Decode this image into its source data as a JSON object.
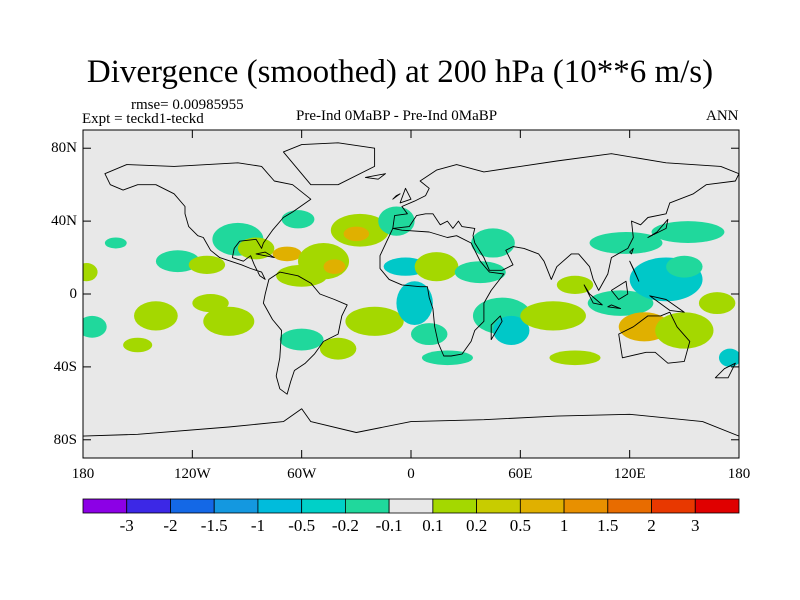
{
  "title": "Divergence (smoothed) at 200 hPa (10**6 m/s)",
  "header": {
    "rmse": "rmse= 0.00985955",
    "expt": "Expt = teckd1-teckd",
    "comparison": "Pre-Ind 0MaBP - Pre-Ind 0MaBP",
    "period": "ANN"
  },
  "map": {
    "lat_range": [
      -90,
      90
    ],
    "lon_range": [
      -180,
      180
    ],
    "lat_ticks": [
      {
        "value": 80,
        "label": "80N"
      },
      {
        "value": 40,
        "label": "40N"
      },
      {
        "value": 0,
        "label": "0"
      },
      {
        "value": -40,
        "label": "40S"
      },
      {
        "value": -80,
        "label": "80S"
      }
    ],
    "lon_ticks": [
      {
        "value": -180,
        "label": "180"
      },
      {
        "value": -120,
        "label": "120W"
      },
      {
        "value": -60,
        "label": "60W"
      },
      {
        "value": 0,
        "label": "0"
      },
      {
        "value": 60,
        "label": "60E"
      },
      {
        "value": 120,
        "label": "120E"
      },
      {
        "value": 180,
        "label": "180"
      }
    ],
    "background_color": "#e8e8e8",
    "coastline_color": "#000000",
    "blobs": [
      {
        "lon": -128,
        "lat": 18,
        "rlon": 12,
        "rlat": 6,
        "color": "#20d89c"
      },
      {
        "lon": -112,
        "lat": 16,
        "rlon": 10,
        "rlat": 5,
        "color": "#a4d800"
      },
      {
        "lon": -95,
        "lat": 30,
        "rlon": 14,
        "rlat": 9,
        "color": "#20d89c"
      },
      {
        "lon": -85,
        "lat": 25,
        "rlon": 10,
        "rlat": 6,
        "color": "#a4d800"
      },
      {
        "lon": -68,
        "lat": 22,
        "rlon": 8,
        "rlat": 4,
        "color": "#e0b000"
      },
      {
        "lon": -60,
        "lat": 10,
        "rlon": 14,
        "rlat": 6,
        "color": "#a4d800"
      },
      {
        "lon": -48,
        "lat": 18,
        "rlon": 14,
        "rlat": 10,
        "color": "#a4d800"
      },
      {
        "lon": -42,
        "lat": 15,
        "rlon": 6,
        "rlat": 4,
        "color": "#e0b000"
      },
      {
        "lon": -62,
        "lat": 41,
        "rlon": 9,
        "rlat": 5,
        "color": "#20d89c"
      },
      {
        "lon": -28,
        "lat": 35,
        "rlon": 16,
        "rlat": 9,
        "color": "#a4d800"
      },
      {
        "lon": -30,
        "lat": 33,
        "rlon": 7,
        "rlat": 4,
        "color": "#e0b000"
      },
      {
        "lon": -8,
        "lat": 40,
        "rlon": 10,
        "rlat": 8,
        "color": "#20d89c"
      },
      {
        "lon": -3,
        "lat": 15,
        "rlon": 12,
        "rlat": 5,
        "color": "#00c8c8"
      },
      {
        "lon": 14,
        "lat": 15,
        "rlon": 12,
        "rlat": 8,
        "color": "#a4d800"
      },
      {
        "lon": 38,
        "lat": 12,
        "rlon": 14,
        "rlat": 6,
        "color": "#20d89c"
      },
      {
        "lon": 45,
        "lat": 28,
        "rlon": 12,
        "rlat": 8,
        "color": "#20d89c"
      },
      {
        "lon": -20,
        "lat": -15,
        "rlon": 16,
        "rlat": 8,
        "color": "#a4d800"
      },
      {
        "lon": 2,
        "lat": -5,
        "rlon": 10,
        "rlat": 12,
        "color": "#00c8c8"
      },
      {
        "lon": 10,
        "lat": -22,
        "rlon": 10,
        "rlat": 6,
        "color": "#20d89c"
      },
      {
        "lon": 50,
        "lat": -12,
        "rlon": 16,
        "rlat": 10,
        "color": "#20d89c"
      },
      {
        "lon": 55,
        "lat": -20,
        "rlon": 10,
        "rlat": 8,
        "color": "#00c8c8"
      },
      {
        "lon": 78,
        "lat": -12,
        "rlon": 18,
        "rlat": 8,
        "color": "#a4d800"
      },
      {
        "lon": 90,
        "lat": 5,
        "rlon": 10,
        "rlat": 5,
        "color": "#a4d800"
      },
      {
        "lon": 115,
        "lat": -5,
        "rlon": 18,
        "rlat": 7,
        "color": "#20d89c"
      },
      {
        "lon": 140,
        "lat": 8,
        "rlon": 20,
        "rlat": 12,
        "color": "#00c8c8"
      },
      {
        "lon": 150,
        "lat": 15,
        "rlon": 10,
        "rlat": 6,
        "color": "#20d89c"
      },
      {
        "lon": 168,
        "lat": -5,
        "rlon": 10,
        "rlat": 6,
        "color": "#a4d800"
      },
      {
        "lon": 128,
        "lat": -18,
        "rlon": 14,
        "rlat": 8,
        "color": "#e0b000"
      },
      {
        "lon": 150,
        "lat": -20,
        "rlon": 16,
        "rlat": 10,
        "color": "#a4d800"
      },
      {
        "lon": 118,
        "lat": 28,
        "rlon": 20,
        "rlat": 6,
        "color": "#20d89c"
      },
      {
        "lon": 152,
        "lat": 34,
        "rlon": 20,
        "rlat": 6,
        "color": "#20d89c"
      },
      {
        "lon": -140,
        "lat": -12,
        "rlon": 12,
        "rlat": 8,
        "color": "#a4d800"
      },
      {
        "lon": -110,
        "lat": -5,
        "rlon": 10,
        "rlat": 5,
        "color": "#a4d800"
      },
      {
        "lon": -100,
        "lat": -15,
        "rlon": 14,
        "rlat": 8,
        "color": "#a4d800"
      },
      {
        "lon": -175,
        "lat": -18,
        "rlon": 8,
        "rlat": 6,
        "color": "#20d89c"
      },
      {
        "lon": -162,
        "lat": 28,
        "rlon": 6,
        "rlat": 3,
        "color": "#20d89c"
      },
      {
        "lon": -178,
        "lat": 12,
        "rlon": 6,
        "rlat": 5,
        "color": "#a4d800"
      },
      {
        "lon": -150,
        "lat": -28,
        "rlon": 8,
        "rlat": 4,
        "color": "#a4d800"
      },
      {
        "lon": -60,
        "lat": -25,
        "rlon": 12,
        "rlat": 6,
        "color": "#20d89c"
      },
      {
        "lon": -40,
        "lat": -30,
        "rlon": 10,
        "rlat": 6,
        "color": "#a4d800"
      },
      {
        "lon": 20,
        "lat": -35,
        "rlon": 14,
        "rlat": 4,
        "color": "#20d89c"
      },
      {
        "lon": 90,
        "lat": -35,
        "rlon": 14,
        "rlat": 4,
        "color": "#a4d800"
      },
      {
        "lon": 175,
        "lat": -35,
        "rlon": 6,
        "rlat": 5,
        "color": "#00c8c8"
      }
    ],
    "land": [
      [
        [
          -168,
          66
        ],
        [
          -156,
          71
        ],
        [
          -130,
          70
        ],
        [
          -95,
          72
        ],
        [
          -82,
          70
        ],
        [
          -75,
          62
        ],
        [
          -65,
          60
        ],
        [
          -55,
          52
        ],
        [
          -65,
          45
        ],
        [
          -70,
          42
        ],
        [
          -76,
          35
        ],
        [
          -81,
          28
        ],
        [
          -82,
          25
        ],
        [
          -85,
          30
        ],
        [
          -94,
          29
        ],
        [
          -97,
          25
        ],
        [
          -98,
          20
        ],
        [
          -92,
          18
        ],
        [
          -88,
          21
        ],
        [
          -86,
          16
        ],
        [
          -83,
          10
        ],
        [
          -80,
          8
        ],
        [
          -82,
          12
        ],
        [
          -88,
          14
        ],
        [
          -93,
          16
        ],
        [
          -105,
          20
        ],
        [
          -110,
          24
        ],
        [
          -114,
          31
        ],
        [
          -117,
          32
        ],
        [
          -122,
          37
        ],
        [
          -124,
          44
        ],
        [
          -124,
          48
        ],
        [
          -130,
          55
        ],
        [
          -140,
          60
        ],
        [
          -150,
          60
        ],
        [
          -158,
          57
        ],
        [
          -165,
          60
        ],
        [
          -168,
          66
        ]
      ],
      [
        [
          -78,
          8
        ],
        [
          -72,
          12
        ],
        [
          -62,
          10
        ],
        [
          -55,
          6
        ],
        [
          -50,
          0
        ],
        [
          -42,
          -3
        ],
        [
          -35,
          -6
        ],
        [
          -38,
          -12
        ],
        [
          -40,
          -22
        ],
        [
          -48,
          -26
        ],
        [
          -53,
          -33
        ],
        [
          -58,
          -38
        ],
        [
          -64,
          -42
        ],
        [
          -66,
          -48
        ],
        [
          -68,
          -55
        ],
        [
          -72,
          -52
        ],
        [
          -74,
          -45
        ],
        [
          -72,
          -35
        ],
        [
          -71,
          -20
        ],
        [
          -76,
          -14
        ],
        [
          -81,
          -5
        ],
        [
          -80,
          0
        ],
        [
          -78,
          8
        ]
      ],
      [
        [
          -10,
          36
        ],
        [
          -17,
          21
        ],
        [
          -17,
          14
        ],
        [
          -12,
          8
        ],
        [
          -5,
          5
        ],
        [
          5,
          4
        ],
        [
          9,
          4
        ],
        [
          10,
          -2
        ],
        [
          12,
          -8
        ],
        [
          13,
          -18
        ],
        [
          15,
          -27
        ],
        [
          18,
          -34
        ],
        [
          22,
          -34
        ],
        [
          28,
          -33
        ],
        [
          33,
          -26
        ],
        [
          35,
          -20
        ],
        [
          40,
          -15
        ],
        [
          40,
          -5
        ],
        [
          44,
          2
        ],
        [
          51,
          11
        ],
        [
          43,
          12
        ],
        [
          38,
          18
        ],
        [
          33,
          28
        ],
        [
          25,
          32
        ],
        [
          20,
          31
        ],
        [
          10,
          34
        ],
        [
          -5,
          35
        ],
        [
          -10,
          36
        ]
      ],
      [
        [
          -10,
          36
        ],
        [
          -9,
          43
        ],
        [
          -2,
          44
        ],
        [
          -5,
          48
        ],
        [
          2,
          51
        ],
        [
          8,
          54
        ],
        [
          10,
          58
        ],
        [
          5,
          62
        ],
        [
          14,
          68
        ],
        [
          25,
          71
        ],
        [
          40,
          67
        ],
        [
          60,
          70
        ],
        [
          80,
          73
        ],
        [
          110,
          77
        ],
        [
          140,
          72
        ],
        [
          170,
          70
        ],
        [
          180,
          66
        ],
        [
          178,
          62
        ],
        [
          162,
          60
        ],
        [
          155,
          55
        ],
        [
          142,
          50
        ],
        [
          140,
          44
        ],
        [
          130,
          42
        ],
        [
          126,
          38
        ],
        [
          121,
          40
        ],
        [
          122,
          31
        ],
        [
          119,
          25
        ],
        [
          110,
          20
        ],
        [
          108,
          11
        ],
        [
          103,
          2
        ],
        [
          100,
          8
        ],
        [
          98,
          15
        ],
        [
          92,
          22
        ],
        [
          88,
          22
        ],
        [
          80,
          15
        ],
        [
          77,
          8
        ],
        [
          73,
          18
        ],
        [
          70,
          22
        ],
        [
          62,
          25
        ],
        [
          56,
          26
        ],
        [
          52,
          24
        ],
        [
          56,
          16
        ],
        [
          50,
          13
        ],
        [
          43,
          13
        ],
        [
          40,
          20
        ],
        [
          35,
          28
        ],
        [
          34,
          32
        ],
        [
          35,
          36
        ],
        [
          28,
          37
        ],
        [
          26,
          40
        ],
        [
          23,
          36
        ],
        [
          20,
          40
        ],
        [
          16,
          38
        ],
        [
          12,
          44
        ],
        [
          8,
          44
        ],
        [
          3,
          43
        ],
        [
          -1,
          37
        ],
        [
          -10,
          36
        ]
      ],
      [
        [
          114,
          -22
        ],
        [
          122,
          -18
        ],
        [
          130,
          -12
        ],
        [
          137,
          -12
        ],
        [
          142,
          -10
        ],
        [
          146,
          -18
        ],
        [
          153,
          -26
        ],
        [
          150,
          -37
        ],
        [
          141,
          -38
        ],
        [
          134,
          -32
        ],
        [
          129,
          -32
        ],
        [
          116,
          -35
        ],
        [
          114,
          -22
        ]
      ],
      [
        [
          -180,
          -78
        ],
        [
          -150,
          -77
        ],
        [
          -100,
          -73
        ],
        [
          -70,
          -70
        ],
        [
          -60,
          -63
        ],
        [
          -55,
          -70
        ],
        [
          -30,
          -76
        ],
        [
          0,
          -70
        ],
        [
          40,
          -69
        ],
        [
          80,
          -67
        ],
        [
          120,
          -66
        ],
        [
          160,
          -70
        ],
        [
          180,
          -78
        ],
        [
          180,
          -90
        ],
        [
          -180,
          -90
        ]
      ],
      [
        [
          -55,
          60
        ],
        [
          -40,
          60
        ],
        [
          -20,
          70
        ],
        [
          -20,
          80
        ],
        [
          -40,
          83
        ],
        [
          -60,
          82
        ],
        [
          -70,
          78
        ],
        [
          -55,
          60
        ]
      ],
      [
        [
          95,
          5
        ],
        [
          100,
          -5
        ],
        [
          105,
          -6
        ],
        [
          98,
          0
        ],
        [
          95,
          5
        ]
      ],
      [
        [
          108,
          -7
        ],
        [
          115,
          -8
        ],
        [
          110,
          -6
        ],
        [
          108,
          -7
        ]
      ],
      [
        [
          110,
          2
        ],
        [
          118,
          7
        ],
        [
          119,
          0
        ],
        [
          114,
          -3
        ],
        [
          110,
          2
        ]
      ],
      [
        [
          131,
          -1
        ],
        [
          140,
          -3
        ],
        [
          150,
          -10
        ],
        [
          142,
          -9
        ],
        [
          131,
          -1
        ]
      ],
      [
        [
          44,
          -25
        ],
        [
          50,
          -15
        ],
        [
          49,
          -12
        ],
        [
          44,
          -17
        ],
        [
          44,
          -25
        ]
      ],
      [
        [
          130,
          31
        ],
        [
          135,
          34
        ],
        [
          141,
          41
        ],
        [
          140,
          36
        ],
        [
          130,
          31
        ]
      ],
      [
        [
          -6,
          50
        ],
        [
          -3,
          58
        ],
        [
          0,
          52
        ],
        [
          -6,
          50
        ]
      ],
      [
        [
          -10,
          52
        ],
        [
          -6,
          55
        ],
        [
          -8,
          54
        ],
        [
          -10,
          52
        ]
      ],
      [
        [
          172,
          -41
        ],
        [
          178,
          -38
        ],
        [
          174,
          -46
        ],
        [
          167,
          -46
        ],
        [
          172,
          -41
        ]
      ],
      [
        [
          -85,
          22
        ],
        [
          -75,
          20
        ],
        [
          -80,
          23
        ],
        [
          -85,
          22
        ]
      ],
      [
        [
          -25,
          64
        ],
        [
          -14,
          66
        ],
        [
          -18,
          63
        ],
        [
          -25,
          64
        ]
      ],
      [
        [
          120,
          23
        ],
        [
          122,
          25
        ],
        [
          121,
          22
        ],
        [
          120,
          23
        ]
      ],
      [
        [
          120,
          18
        ],
        [
          122,
          14
        ],
        [
          125,
          7
        ],
        [
          120,
          18
        ]
      ]
    ]
  },
  "colorbar": {
    "colors": [
      "#8c00e6",
      "#3c28e6",
      "#1468e6",
      "#1498e0",
      "#00bcdc",
      "#00d0c8",
      "#20d89c",
      "#e8e8e8",
      "#a4d800",
      "#c8cc00",
      "#e0b000",
      "#e89000",
      "#e86c00",
      "#e83800",
      "#e00000"
    ],
    "labels": [
      "-3",
      "-2",
      "-1.5",
      "-1",
      "-0.5",
      "-0.2",
      "-0.1",
      "0.1",
      "0.2",
      "0.5",
      "1",
      "1.5",
      "2",
      "3"
    ]
  }
}
